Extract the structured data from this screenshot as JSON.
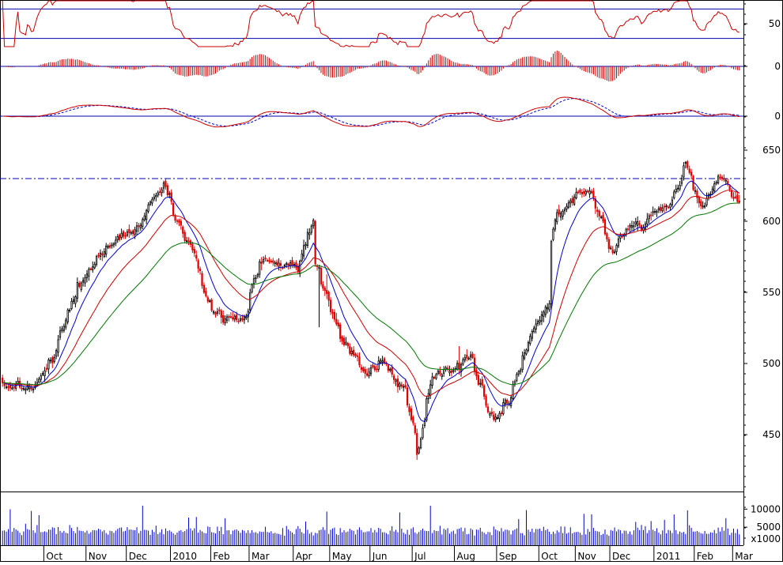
{
  "chart_data": {
    "type": "candlestick",
    "colors": {
      "up_candle": "#000000",
      "down_candle": "#e00000",
      "ma_short": "#0000cc",
      "ma_mid": "#cc0000",
      "ma_long": "#007700",
      "resistance": "#0000aa",
      "volume": "#0000cc",
      "osc_line": "#cc0000",
      "osc_signal": "#0000cc",
      "baseline": "#0000aa"
    },
    "x_axis": {
      "tick_labels": [
        "Oct",
        "Nov",
        "Dec",
        "2010",
        "Feb",
        "Mar",
        "Apr",
        "May",
        "Jun",
        "Jul",
        "Aug",
        "Sep",
        "Oct",
        "Nov",
        "Dec",
        "2011",
        "Feb",
        "Mar"
      ]
    },
    "panels": {
      "rsi": {
        "ticks": [
          "50"
        ],
        "ylim": [
          20,
          80
        ],
        "levels": [
          70,
          30
        ]
      },
      "histogram": {
        "ticks": [
          "0"
        ]
      },
      "macd": {
        "ticks": [
          "0"
        ]
      },
      "price": {
        "ticks": [
          "650",
          "600",
          "550",
          "500",
          "450"
        ],
        "ylim": [
          410,
          660
        ],
        "resistance_level": 630
      },
      "volume": {
        "ticks": [
          "10000",
          "5000"
        ],
        "unit_label": "x1000"
      }
    },
    "price_anchors": [
      [
        "2009-09-01",
        490
      ],
      [
        "2009-09-20",
        480
      ],
      [
        "2009-10-10",
        510
      ],
      [
        "2009-10-25",
        555
      ],
      [
        "2009-11-15",
        580
      ],
      [
        "2009-12-10",
        600
      ],
      [
        "2009-12-28",
        628
      ],
      [
        "2010-01-05",
        600
      ],
      [
        "2010-01-20",
        575
      ],
      [
        "2010-01-28",
        540
      ],
      [
        "2010-02-10",
        530
      ],
      [
        "2010-02-25",
        535
      ],
      [
        "2010-03-08",
        575
      ],
      [
        "2010-03-20",
        570
      ],
      [
        "2010-04-05",
        565
      ],
      [
        "2010-04-15",
        600
      ],
      [
        "2010-04-22",
        565
      ],
      [
        "2010-05-10",
        520
      ],
      [
        "2010-05-28",
        490
      ],
      [
        "2010-06-10",
        500
      ],
      [
        "2010-06-25",
        485
      ],
      [
        "2010-07-05",
        440
      ],
      [
        "2010-07-15",
        490
      ],
      [
        "2010-07-28",
        495
      ],
      [
        "2010-08-12",
        505
      ],
      [
        "2010-08-28",
        460
      ],
      [
        "2010-09-10",
        475
      ],
      [
        "2010-09-28",
        525
      ],
      [
        "2010-10-08",
        540
      ],
      [
        "2010-10-15",
        600
      ],
      [
        "2010-10-25",
        612
      ],
      [
        "2010-11-08",
        625
      ],
      [
        "2010-11-22",
        590
      ],
      [
        "2010-12-02",
        580
      ],
      [
        "2010-12-15",
        598
      ],
      [
        "2010-12-28",
        600
      ],
      [
        "2011-01-15",
        612
      ],
      [
        "2011-01-25",
        638
      ],
      [
        "2011-02-05",
        610
      ],
      [
        "2011-02-20",
        628
      ],
      [
        "2011-03-05",
        612
      ]
    ],
    "gaps": [
      {
        "from": "2010-04-16",
        "to": "2010-04-20"
      },
      {
        "from": "2010-10-09",
        "to": "2010-10-12"
      },
      {
        "from": "2010-11-24",
        "to": "2010-11-29"
      }
    ],
    "ma_periods": [
      10,
      25,
      50
    ],
    "date_range": [
      "2009-09-01",
      "2011-03-05"
    ]
  }
}
